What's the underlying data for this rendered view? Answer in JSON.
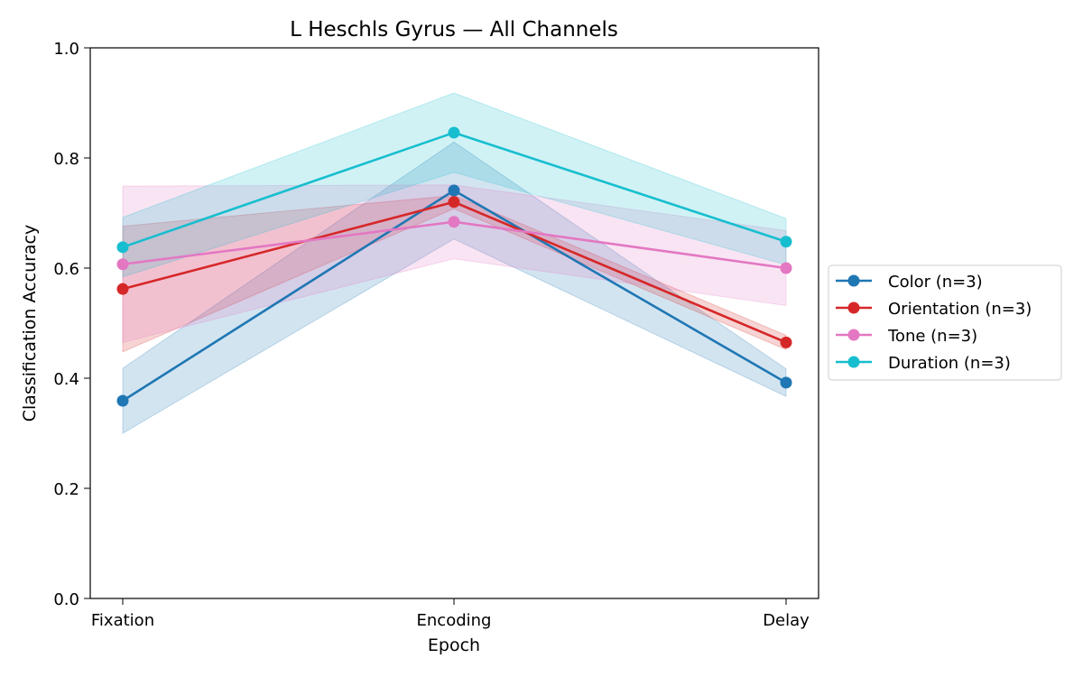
{
  "chart_data": {
    "type": "line",
    "title": "L Heschls Gyrus — All Channels",
    "xlabel": "Epoch",
    "ylabel": "Classification Accuracy",
    "categories": [
      "Fixation",
      "Encoding",
      "Delay"
    ],
    "ylim": [
      0,
      1.0
    ],
    "yticks": [
      "0.0",
      "0.2",
      "0.4",
      "0.6",
      "0.8",
      "1.0"
    ],
    "ytick_values": [
      0,
      0.2,
      0.4,
      0.6,
      0.8,
      1.0
    ],
    "grid": false,
    "legend_position": "outside-right",
    "series": [
      {
        "name": "Color (n=3)",
        "color": "#1f77b4",
        "values": [
          0.359,
          0.741,
          0.392
        ],
        "lower": [
          0.3,
          0.653,
          0.367
        ],
        "upper": [
          0.418,
          0.829,
          0.417
        ]
      },
      {
        "name": "Orientation (n=3)",
        "color": "#d62728",
        "values": [
          0.562,
          0.72,
          0.465
        ],
        "lower": [
          0.448,
          0.708,
          0.452
        ],
        "upper": [
          0.676,
          0.732,
          0.478
        ]
      },
      {
        "name": "Tone (n=3)",
        "color": "#e377c2",
        "values": [
          0.607,
          0.684,
          0.6
        ],
        "lower": [
          0.465,
          0.617,
          0.532
        ],
        "upper": [
          0.749,
          0.751,
          0.668
        ]
      },
      {
        "name": "Duration (n=3)",
        "color": "#17becf",
        "values": [
          0.638,
          0.846,
          0.648
        ],
        "lower": [
          0.584,
          0.774,
          0.606
        ],
        "upper": [
          0.692,
          0.918,
          0.69
        ]
      }
    ]
  }
}
